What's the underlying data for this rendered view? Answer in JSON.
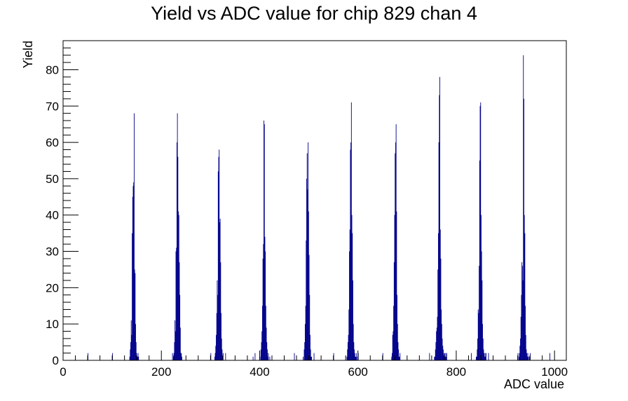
{
  "chart_data": {
    "type": "bar",
    "title": "Yield vs ADC value for chip 829 chan 4",
    "xlabel": "ADC value",
    "ylabel": "Yield",
    "xlim": [
      0,
      1024
    ],
    "ylim": [
      0,
      88
    ],
    "x_major_ticks": [
      0,
      200,
      400,
      600,
      800,
      1000
    ],
    "x_tick_labels": [
      "0",
      "200",
      "400",
      "600",
      "800",
      "1000"
    ],
    "y_major_ticks": [
      0,
      10,
      20,
      30,
      40,
      50,
      60,
      70,
      80
    ],
    "y_tick_labels": [
      "0",
      "10",
      "20",
      "30",
      "40",
      "50",
      "60",
      "70",
      "80"
    ],
    "series_color": "#00008b",
    "grid": false,
    "legend": "none",
    "series": [
      {
        "x": [
          50,
          100,
          135,
          136,
          137,
          138,
          139,
          140,
          141,
          142,
          143,
          144,
          145,
          146,
          147,
          148,
          149,
          150,
          151,
          152,
          153,
          222,
          224,
          225,
          226,
          227,
          228,
          229,
          230,
          231,
          232,
          233,
          234,
          235,
          236,
          237,
          238,
          239,
          240,
          241,
          300,
          308,
          309,
          310,
          311,
          312,
          313,
          314,
          315,
          316,
          317,
          318,
          319,
          320,
          321,
          322,
          323,
          324,
          325,
          330,
          386,
          390,
          400,
          402,
          403,
          404,
          405,
          406,
          407,
          408,
          409,
          410,
          411,
          412,
          413,
          414,
          415,
          416,
          417,
          420,
          470,
          488,
          490,
          491,
          492,
          493,
          494,
          495,
          496,
          497,
          498,
          499,
          500,
          501,
          502,
          503,
          504,
          505,
          510,
          550,
          577,
          578,
          579,
          580,
          581,
          582,
          583,
          584,
          585,
          586,
          587,
          588,
          589,
          590,
          591,
          592,
          593,
          594,
          595,
          596,
          597,
          600,
          650,
          668,
          669,
          670,
          671,
          672,
          673,
          674,
          675,
          676,
          677,
          678,
          679,
          680,
          681,
          682,
          683,
          684,
          685,
          745,
          755,
          756,
          757,
          758,
          759,
          760,
          761,
          762,
          763,
          764,
          765,
          766,
          767,
          768,
          769,
          770,
          771,
          772,
          773,
          774,
          775,
          776,
          777,
          778,
          779,
          780,
          830,
          840,
          841,
          842,
          843,
          844,
          845,
          846,
          847,
          848,
          849,
          850,
          851,
          852,
          853,
          854,
          855,
          856,
          857,
          858,
          859,
          860,
          865,
          925,
          927,
          928,
          929,
          930,
          931,
          932,
          933,
          934,
          935,
          936,
          937,
          938,
          939,
          940,
          941,
          942,
          943,
          944,
          945,
          946,
          948,
          950,
          990
        ],
        "values": [
          2,
          2,
          1,
          3,
          5,
          11,
          7,
          35,
          45,
          48,
          49,
          68,
          25,
          24,
          10,
          5,
          2,
          1,
          1,
          2,
          1,
          2,
          1,
          2,
          5,
          11,
          8,
          30,
          31,
          60,
          68,
          56,
          41,
          40,
          27,
          18,
          9,
          2,
          2,
          1,
          2,
          1,
          2,
          4,
          7,
          13,
          22,
          18,
          52,
          56,
          58,
          38,
          39,
          27,
          13,
          6,
          3,
          1,
          2,
          2,
          1,
          2,
          1,
          3,
          5,
          8,
          15,
          28,
          32,
          66,
          65,
          34,
          30,
          15,
          9,
          5,
          3,
          1,
          2,
          1,
          2,
          1,
          3,
          5,
          10,
          15,
          33,
          50,
          57,
          47,
          60,
          41,
          29,
          18,
          7,
          3,
          1,
          1,
          2,
          2,
          1,
          3,
          5,
          7,
          14,
          30,
          36,
          58,
          60,
          71,
          40,
          35,
          22,
          10,
          5,
          3,
          2,
          1,
          1,
          2,
          1,
          2,
          2,
          1,
          2,
          7,
          8,
          15,
          27,
          40,
          57,
          60,
          65,
          41,
          18,
          10,
          5,
          3,
          1,
          1,
          2,
          2,
          1,
          1,
          3,
          5,
          8,
          9,
          12,
          25,
          35,
          60,
          73,
          78,
          36,
          28,
          14,
          10,
          6,
          4,
          3,
          2,
          1,
          2,
          1,
          2,
          1,
          2,
          2,
          1,
          1,
          3,
          6,
          14,
          13,
          26,
          55,
          70,
          71,
          40,
          30,
          22,
          10,
          6,
          3,
          2,
          1,
          2,
          1,
          2,
          2,
          2,
          1,
          2,
          4,
          6,
          12,
          18,
          27,
          26,
          22,
          84,
          72,
          40,
          35,
          15,
          7,
          3,
          2,
          1,
          2,
          1,
          1,
          2,
          2
        ]
      }
    ]
  }
}
